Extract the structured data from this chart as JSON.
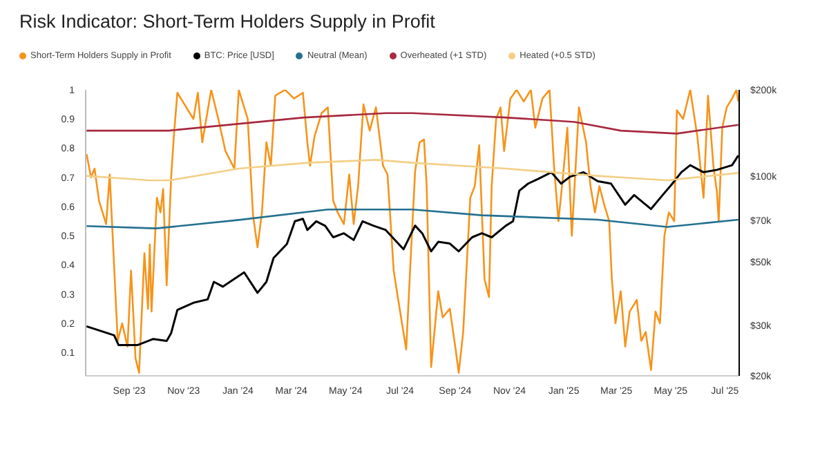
{
  "chart_data": {
    "type": "line",
    "title": "Risk Indicator: Short-Term Holders Supply in Profit",
    "legend": "top left",
    "log": "y2",
    "xlim": [
      "2023-07-14",
      "2025-07-17"
    ],
    "xticks": [
      {
        "value": "2023-09-01",
        "label": "Sep '23"
      },
      {
        "value": "2023-11-01",
        "label": "Nov '23"
      },
      {
        "value": "2024-01-01",
        "label": "Jan '24"
      },
      {
        "value": "2024-03-01",
        "label": "Mar '24"
      },
      {
        "value": "2024-05-01",
        "label": "May '24"
      },
      {
        "value": "2024-07-01",
        "label": "Jul '24"
      },
      {
        "value": "2024-09-01",
        "label": "Sep '24"
      },
      {
        "value": "2024-11-01",
        "label": "Nov '24"
      },
      {
        "value": "2025-01-01",
        "label": "Jan '25"
      },
      {
        "value": "2025-03-01",
        "label": "Mar '25"
      },
      {
        "value": "2025-05-01",
        "label": "May '25"
      },
      {
        "value": "2025-07-01",
        "label": "Jul '25"
      }
    ],
    "ylim": [
      0.02,
      1
    ],
    "yticks": [
      0.1,
      0.2,
      0.3,
      0.4,
      0.5,
      0.6,
      0.7,
      0.8,
      0.9,
      1
    ],
    "y2lim": [
      20000,
      200000
    ],
    "y2ticks": [
      {
        "value": 20000,
        "label": "$20k"
      },
      {
        "value": 30000,
        "label": "$30k"
      },
      {
        "value": 50000,
        "label": "$50k"
      },
      {
        "value": 70000,
        "label": "$70k"
      },
      {
        "value": 100000,
        "label": "$100k"
      },
      {
        "value": 200000,
        "label": "$200k"
      }
    ],
    "series": [
      {
        "name": "Short-Term Holders Supply in Profit",
        "color": "#f7931a",
        "x": [
          "2023-07-15",
          "2023-07-20",
          "2023-07-24",
          "2023-07-29",
          "2023-08-06",
          "2023-08-10",
          "2023-08-19",
          "2023-08-24",
          "2023-08-30",
          "2023-09-03",
          "2023-09-08",
          "2023-09-12",
          "2023-09-18",
          "2023-09-22",
          "2023-09-24",
          "2023-09-26",
          "2023-10-02",
          "2023-10-06",
          "2023-10-09",
          "2023-10-13",
          "2023-10-18",
          "2023-10-21",
          "2023-10-25",
          "2023-11-02",
          "2023-11-12",
          "2023-11-17",
          "2023-11-22",
          "2023-12-02",
          "2023-12-10",
          "2023-12-18",
          "2023-12-28",
          "2024-01-02",
          "2024-01-12",
          "2024-01-18",
          "2024-01-23",
          "2024-01-28",
          "2024-02-02",
          "2024-02-07",
          "2024-02-12",
          "2024-02-23",
          "2024-03-04",
          "2024-03-14",
          "2024-03-19",
          "2024-03-22",
          "2024-03-27",
          "2024-04-04",
          "2024-04-11",
          "2024-04-17",
          "2024-04-22",
          "2024-04-29",
          "2024-05-05",
          "2024-05-10",
          "2024-05-15",
          "2024-05-21",
          "2024-05-28",
          "2024-06-04",
          "2024-06-12",
          "2024-06-17",
          "2024-06-24",
          "2024-06-27",
          "2024-07-08",
          "2024-07-13",
          "2024-07-18",
          "2024-07-23",
          "2024-07-28",
          "2024-07-31",
          "2024-08-05",
          "2024-08-13",
          "2024-08-18",
          "2024-08-26",
          "2024-09-02",
          "2024-09-05",
          "2024-09-10",
          "2024-09-18",
          "2024-09-23",
          "2024-09-28",
          "2024-10-04",
          "2024-10-09",
          "2024-10-12",
          "2024-10-17",
          "2024-10-22",
          "2024-10-26",
          "2024-11-02",
          "2024-11-09",
          "2024-11-17",
          "2024-11-25",
          "2024-11-30",
          "2024-12-08",
          "2024-12-16",
          "2024-12-21",
          "2024-12-26",
          "2024-12-31",
          "2025-01-05",
          "2025-01-10",
          "2025-01-18",
          "2025-01-26",
          "2025-01-31",
          "2025-02-05",
          "2025-02-10",
          "2025-02-16",
          "2025-02-21",
          "2025-02-24",
          "2025-02-28",
          "2025-03-06",
          "2025-03-11",
          "2025-03-16",
          "2025-03-24",
          "2025-03-29",
          "2025-04-03",
          "2025-04-09",
          "2025-04-14",
          "2025-04-19",
          "2025-04-24",
          "2025-04-29",
          "2025-05-05",
          "2025-05-08",
          "2025-05-15",
          "2025-05-23",
          "2025-05-31",
          "2025-06-07",
          "2025-06-12",
          "2025-06-18",
          "2025-06-22",
          "2025-06-24",
          "2025-06-28",
          "2025-07-03",
          "2025-07-09",
          "2025-07-14",
          "2025-07-16"
        ],
        "values": [
          0.78,
          0.7,
          0.73,
          0.62,
          0.54,
          0.71,
          0.14,
          0.2,
          0.12,
          0.38,
          0.08,
          0.03,
          0.44,
          0.25,
          0.47,
          0.24,
          0.63,
          0.58,
          0.66,
          0.33,
          0.7,
          0.84,
          0.99,
          0.95,
          0.9,
          0.99,
          0.82,
          1.0,
          0.9,
          0.79,
          0.73,
          1.0,
          0.9,
          0.57,
          0.46,
          0.58,
          0.82,
          0.74,
          0.98,
          1.0,
          0.97,
          0.99,
          0.82,
          0.74,
          0.84,
          0.92,
          0.94,
          0.62,
          0.58,
          0.54,
          0.71,
          0.54,
          0.67,
          0.95,
          0.86,
          0.94,
          0.74,
          0.71,
          0.38,
          0.32,
          0.11,
          0.42,
          0.72,
          0.82,
          0.83,
          0.67,
          0.05,
          0.31,
          0.22,
          0.25,
          0.1,
          0.03,
          0.17,
          0.63,
          0.67,
          0.81,
          0.35,
          0.29,
          0.67,
          0.9,
          0.94,
          0.79,
          0.97,
          1.0,
          0.96,
          1.0,
          0.87,
          0.97,
          1.0,
          0.74,
          0.55,
          0.7,
          0.87,
          0.5,
          0.94,
          0.82,
          0.67,
          0.58,
          0.67,
          0.6,
          0.55,
          0.35,
          0.2,
          0.31,
          0.12,
          0.24,
          0.28,
          0.14,
          0.17,
          0.04,
          0.24,
          0.2,
          0.5,
          0.58,
          0.55,
          0.93,
          0.9,
          1.0,
          0.84,
          0.63,
          0.98,
          0.74,
          0.65,
          0.55,
          0.87,
          0.94,
          0.97,
          1.0,
          0.96
        ]
      },
      {
        "name": "BTC: Price [USD]",
        "color": "#000000",
        "axis": "y2",
        "x": [
          "2023-07-15",
          "2023-08-15",
          "2023-08-20",
          "2023-09-10",
          "2023-09-28",
          "2023-10-13",
          "2023-10-18",
          "2023-10-25",
          "2023-11-12",
          "2023-11-28",
          "2023-12-05",
          "2023-12-15",
          "2023-12-23",
          "2024-01-08",
          "2024-01-23",
          "2024-02-02",
          "2024-02-10",
          "2024-02-25",
          "2024-03-05",
          "2024-03-14",
          "2024-03-19",
          "2024-03-29",
          "2024-04-08",
          "2024-04-17",
          "2024-04-29",
          "2024-05-10",
          "2024-05-20",
          "2024-06-01",
          "2024-06-15",
          "2024-07-05",
          "2024-07-18",
          "2024-07-26",
          "2024-08-05",
          "2024-08-13",
          "2024-08-26",
          "2024-09-05",
          "2024-09-20",
          "2024-10-01",
          "2024-10-12",
          "2024-10-28",
          "2024-11-05",
          "2024-11-12",
          "2024-11-22",
          "2024-12-03",
          "2024-12-18",
          "2024-12-29",
          "2025-01-08",
          "2025-01-23",
          "2025-02-08",
          "2025-02-23",
          "2025-03-11",
          "2025-03-21",
          "2025-04-09",
          "2025-04-22",
          "2025-05-03",
          "2025-05-13",
          "2025-05-23",
          "2025-06-07",
          "2025-06-22",
          "2025-07-09",
          "2025-07-16"
        ],
        "values": [
          29800,
          27700,
          25600,
          25600,
          26900,
          26500,
          28200,
          34000,
          36000,
          37000,
          42600,
          41000,
          42600,
          46000,
          39000,
          42600,
          51600,
          57800,
          69400,
          70800,
          64700,
          69400,
          66900,
          61000,
          63000,
          59700,
          69400,
          67000,
          64700,
          55400,
          67000,
          63000,
          54500,
          58800,
          58000,
          54500,
          61000,
          63000,
          61000,
          67000,
          69400,
          88700,
          94000,
          97500,
          103000,
          94000,
          99300,
          103000,
          95800,
          94000,
          79300,
          85700,
          76600,
          85700,
          94000,
          103000,
          109000,
          103000,
          105000,
          109000,
          117800
        ]
      },
      {
        "name": "Neutral (Mean)",
        "color": "#23708f",
        "x": [
          "2023-07-15",
          "2023-10-01",
          "2024-01-02",
          "2024-04-11",
          "2024-06-04",
          "2024-07-15",
          "2024-10-01",
          "2025-02-08",
          "2025-04-27",
          "2025-07-16"
        ],
        "values": [
          0.533,
          0.525,
          0.554,
          0.59,
          0.59,
          0.59,
          0.57,
          0.555,
          0.53,
          0.555
        ]
      },
      {
        "name": "Overheated (+1 STD)",
        "color": "#a8283e",
        "x": [
          "2023-07-15",
          "2023-10-15",
          "2024-03-15",
          "2024-06-15",
          "2024-07-15",
          "2024-10-28",
          "2025-01-13",
          "2025-03-06",
          "2025-05-08",
          "2025-07-16"
        ],
        "values": [
          0.86,
          0.86,
          0.905,
          0.92,
          0.92,
          0.905,
          0.89,
          0.86,
          0.85,
          0.88
        ]
      },
      {
        "name": "Heated (+0.5 STD)",
        "color": "#f3cf86",
        "x": [
          "2023-07-15",
          "2023-09-23",
          "2023-10-17",
          "2024-01-02",
          "2024-03-19",
          "2024-06-04",
          "2024-07-15",
          "2024-10-28",
          "2025-02-08",
          "2025-04-27",
          "2025-07-16"
        ],
        "values": [
          0.705,
          0.69,
          0.69,
          0.73,
          0.75,
          0.76,
          0.75,
          0.73,
          0.705,
          0.69,
          0.715
        ]
      }
    ]
  }
}
